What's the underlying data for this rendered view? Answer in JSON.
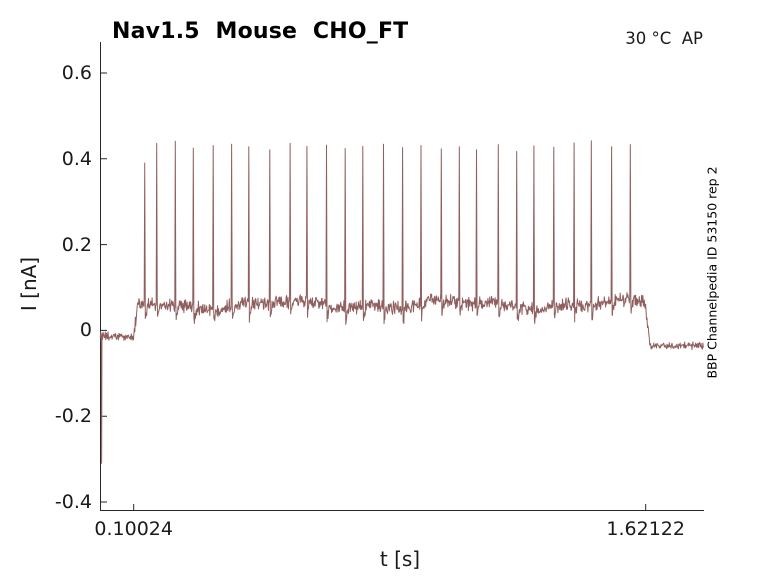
{
  "figure": {
    "title": "Nav1.5  Mouse  CHO_FT",
    "annotation": "30 °C  AP",
    "side_label": "BBP Channelpedia ID 53150 rep 2"
  },
  "chart_data": {
    "type": "line",
    "title": "Nav1.5  Mouse  CHO_FT",
    "xlabel": "t [s]",
    "ylabel": "I [nA]",
    "legend": null,
    "grid": false,
    "axis_style": "open-box-left-bottom, ticks inward",
    "xlim": [
      0.0,
      1.796
    ],
    "ylim": [
      -0.416,
      0.666
    ],
    "x_ticks": [
      {
        "value": 0.10024,
        "label": "0.10024"
      },
      {
        "value": 1.62122,
        "label": "1.62122"
      }
    ],
    "y_ticks": [
      {
        "value": 0.6,
        "label": "0.6"
      },
      {
        "value": 0.4,
        "label": "0.4"
      },
      {
        "value": 0.2,
        "label": "0.2"
      },
      {
        "value": 0,
        "label": "0"
      },
      {
        "value": -0.2,
        "label": "-0.2"
      },
      {
        "value": -0.4,
        "label": "-0.4"
      }
    ],
    "colors": {
      "line_color": "#8f5f5f",
      "axis_color": "#262626",
      "text_color": "#1a1a1a"
    },
    "trace": {
      "description": "current-clamp style spiking trace: quiet baseline, stimulus step with 27 action-potential spikes, step back down",
      "t_start": 0.001,
      "t_end": 1.793,
      "stim_start": 0.10024,
      "stim_end": 1.62122,
      "pre_baseline": -0.015,
      "pre_noise": 0.013,
      "stim_baseline": 0.06,
      "stim_noise": 0.019,
      "post_baseline": -0.035,
      "post_noise": 0.012,
      "step_up_dur": 0.012,
      "step_down_dur": 0.013,
      "initial_transient_t": 0.005,
      "initial_transient_min": -0.31,
      "spike_halfwidth_s": 0.0016,
      "after_dip": 0.03,
      "after_dip_dur": 0.009,
      "spike_times": [
        0.133,
        0.1686,
        0.2238,
        0.2773,
        0.3364,
        0.3911,
        0.4422,
        0.5045,
        0.5649,
        0.6148,
        0.673,
        0.7285,
        0.7808,
        0.8423,
        0.899,
        0.9537,
        1.014,
        1.0675,
        1.1186,
        1.1833,
        1.238,
        1.2891,
        1.3482,
        1.4085,
        1.4596,
        1.5199,
        1.5755
      ],
      "spike_peaks": [
        0.39,
        0.436,
        0.441,
        0.425,
        0.431,
        0.434,
        0.428,
        0.421,
        0.436,
        0.429,
        0.432,
        0.424,
        0.429,
        0.434,
        0.426,
        0.431,
        0.423,
        0.428,
        0.421,
        0.433,
        0.417,
        0.43,
        0.427,
        0.437,
        0.442,
        0.428,
        0.433
      ]
    }
  }
}
